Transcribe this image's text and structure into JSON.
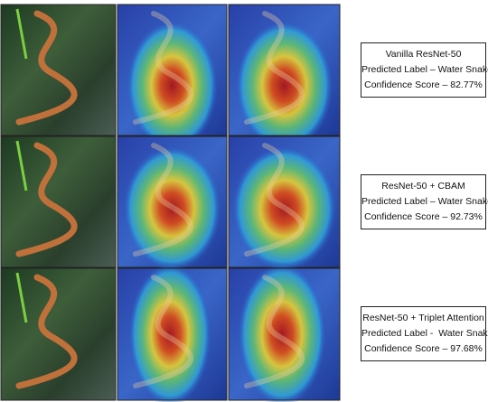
{
  "rows": [
    {
      "lines": [
        "Vanilla ResNet-50",
        "Predicted Label – Water Snake",
        "Confidence Score – 82.77%"
      ]
    },
    {
      "lines": [
        "ResNet-50 + CBAM",
        "Predicted Label – Water Snake",
        "Confidence Score – 92.73%"
      ]
    },
    {
      "lines": [
        "ResNet-50 + Triplet Attention",
        "Predicted Label -  Water Snake",
        "Confidence Score – 97.68%"
      ]
    }
  ]
}
